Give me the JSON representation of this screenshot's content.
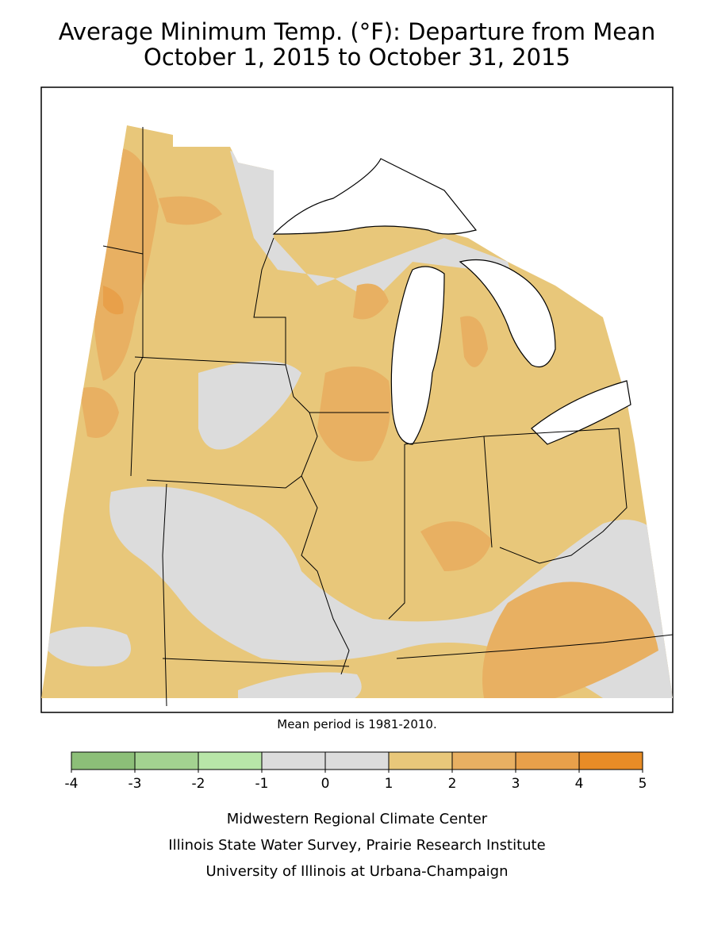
{
  "title": [
    "Average Minimum Temp. (°F): Departure from Mean",
    "October 1, 2015 to October 31, 2015"
  ],
  "note": "Mean period is 1981-2010.",
  "legend": {
    "ticks": [
      -4,
      -3,
      -2,
      -1,
      0,
      1,
      2,
      3,
      4,
      5
    ],
    "colors": [
      "#8cbf78",
      "#a3d290",
      "#b8e6a8",
      "#dcdcdc",
      "#dcdcdc",
      "#e8c77a",
      "#e8b062",
      "#e8a04a",
      "#e88c26"
    ]
  },
  "credits": [
    "Midwestern Regional Climate Center",
    "Illinois State Water Survey, Prairie Research Institute",
    "University of Illinois at Urbana-Champaign"
  ]
}
